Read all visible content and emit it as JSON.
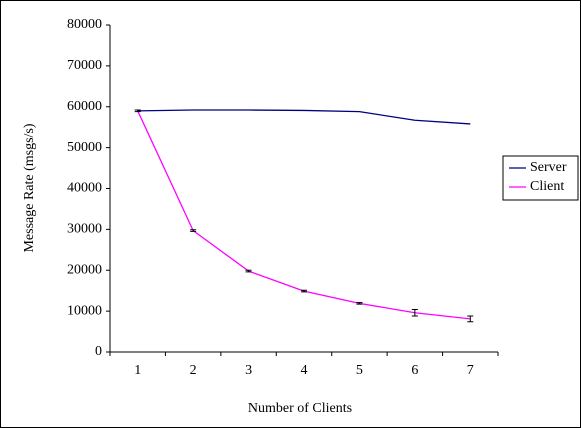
{
  "chart_data": {
    "type": "line",
    "categories": [
      "1",
      "2",
      "3",
      "4",
      "5",
      "6",
      "7"
    ],
    "x_label": "Number of Clients",
    "y_label": "Message Rate (msgs/s)",
    "ylim": [
      0,
      80000
    ],
    "yticks": [
      0,
      10000,
      20000,
      30000,
      40000,
      50000,
      60000,
      70000,
      80000
    ],
    "series": [
      {
        "name": "Server",
        "color": "#000080",
        "values": [
          59000,
          59200,
          59200,
          59100,
          58800,
          56700,
          55800
        ]
      },
      {
        "name": "Client",
        "color": "#ff00ff",
        "values": [
          59000,
          29700,
          19800,
          14900,
          11900,
          9600,
          8100
        ],
        "errors": [
          200,
          200,
          200,
          200,
          200,
          800,
          700
        ]
      }
    ],
    "legend": "right"
  }
}
